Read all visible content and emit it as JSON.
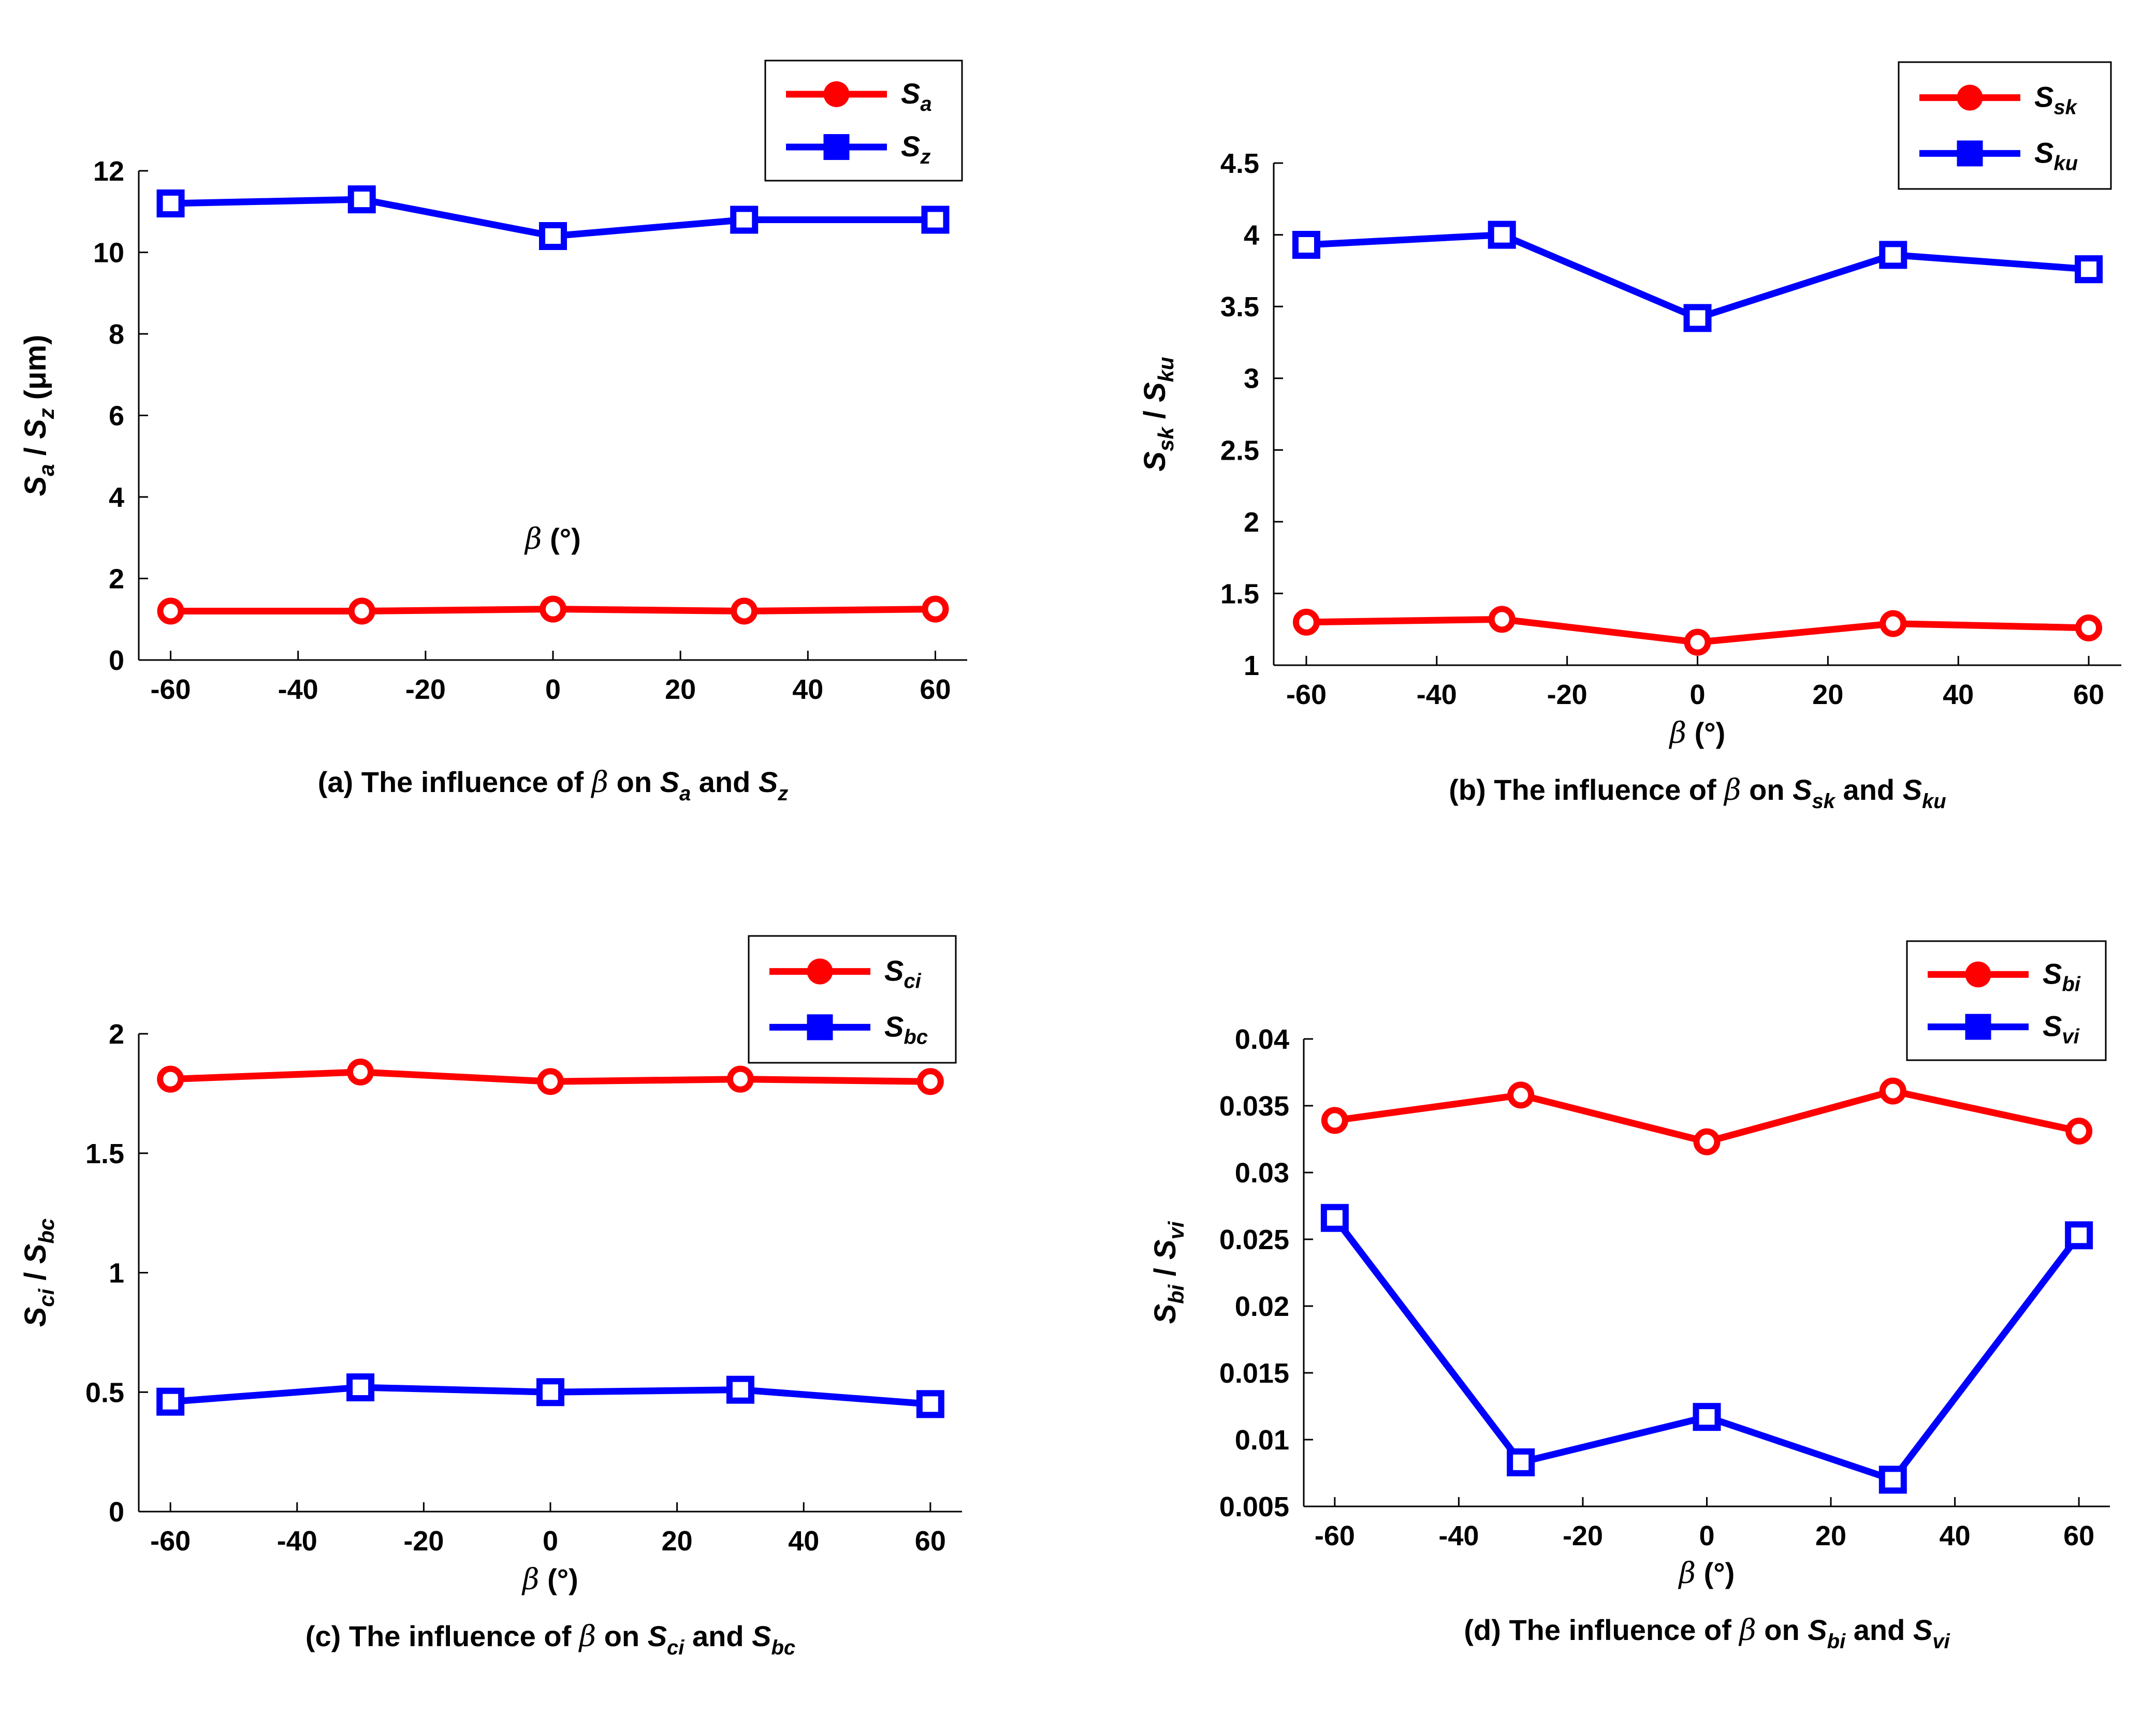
{
  "chart_data": [
    {
      "type": "line",
      "x": [
        -60,
        -30,
        0,
        30,
        60
      ],
      "xlim": [
        -65,
        65
      ],
      "xticks": [
        "-60",
        "-40",
        "-20",
        "0",
        "20",
        "40",
        "60"
      ],
      "xlabel": {
        "symbol": "β",
        "unit": "(°)"
      },
      "ylim": [
        0,
        12
      ],
      "yticks": [
        "0",
        "2",
        "4",
        "6",
        "8",
        "10",
        "12"
      ],
      "ylabel": {
        "a": "S",
        "a_sub": "a",
        "sep": " / ",
        "b": "S",
        "b_sub": "z",
        "unit": " (μm)"
      },
      "series": [
        {
          "name": "S",
          "sub": "a",
          "marker": "circle",
          "color": "#ff0000",
          "values": [
            1.2,
            1.2,
            1.25,
            1.2,
            1.25
          ]
        },
        {
          "name": "S",
          "sub": "z",
          "marker": "square",
          "color": "#0000ff",
          "values": [
            11.2,
            11.3,
            10.4,
            10.8,
            10.8
          ]
        }
      ],
      "caption": {
        "prefix": "(a) The influence of ",
        "symbol": "β",
        "mid": " on ",
        "s1": "S",
        "s1_sub": "a",
        "and": " and ",
        "s2": "S",
        "s2_sub": "z"
      }
    },
    {
      "type": "line",
      "x": [
        -60,
        -30,
        0,
        30,
        60
      ],
      "xlim": [
        -65,
        65
      ],
      "xticks": [
        "-60",
        "-40",
        "-20",
        "0",
        "20",
        "40",
        "60"
      ],
      "xlabel": {
        "symbol": "β",
        "unit": "(°)"
      },
      "ylim": [
        1,
        4.5
      ],
      "yticks": [
        "1",
        "1.5",
        "2",
        "2.5",
        "3",
        "3.5",
        "4",
        "4.5"
      ],
      "ylabel": {
        "a": "S",
        "a_sub": "sk",
        "sep": " / ",
        "b": "S",
        "b_sub": "ku",
        "unit": ""
      },
      "series": [
        {
          "name": "S",
          "sub": "sk",
          "marker": "circle",
          "color": "#ff0000",
          "values": [
            1.3,
            1.32,
            1.16,
            1.29,
            1.26
          ]
        },
        {
          "name": "S",
          "sub": "ku",
          "marker": "square",
          "color": "#0000ff",
          "values": [
            3.93,
            4.0,
            3.42,
            3.86,
            3.76
          ]
        }
      ],
      "caption": {
        "prefix": "(b) The influence of ",
        "symbol": "β",
        "mid": " on ",
        "s1": "S",
        "s1_sub": "sk",
        "and": " and ",
        "s2": "S",
        "s2_sub": "ku"
      }
    },
    {
      "type": "line",
      "x": [
        -60,
        -30,
        0,
        30,
        60
      ],
      "xlim": [
        -65,
        65
      ],
      "xticks": [
        "-60",
        "-40",
        "-20",
        "0",
        "20",
        "40",
        "60"
      ],
      "xlabel": {
        "symbol": "β",
        "unit": "(°)"
      },
      "ylim": [
        0,
        2
      ],
      "yticks": [
        "0",
        "0.5",
        "1",
        "1.5",
        "2"
      ],
      "ylabel": {
        "a": "S",
        "a_sub": "ci",
        "sep": " / ",
        "b": "S",
        "b_sub": "bc",
        "unit": ""
      },
      "series": [
        {
          "name": "S",
          "sub": "ci",
          "marker": "circle",
          "color": "#ff0000",
          "values": [
            1.81,
            1.84,
            1.8,
            1.81,
            1.8
          ]
        },
        {
          "name": "S",
          "sub": "bc",
          "marker": "square",
          "color": "#0000ff",
          "values": [
            0.46,
            0.52,
            0.5,
            0.51,
            0.45
          ]
        }
      ],
      "caption": {
        "prefix": "(c) The influence of ",
        "symbol": "β",
        "mid": " on ",
        "s1": "S",
        "s1_sub": "ci",
        "and": " and ",
        "s2": "S",
        "s2_sub": "bc"
      }
    },
    {
      "type": "line",
      "x": [
        -60,
        -30,
        0,
        30,
        60
      ],
      "xlim": [
        -65,
        65
      ],
      "xticks": [
        "-60",
        "-40",
        "-20",
        "0",
        "20",
        "40",
        "60"
      ],
      "xlabel": {
        "symbol": "β",
        "unit": "(°)"
      },
      "ylim": [
        0.005,
        0.04
      ],
      "yticks": [
        "0.005",
        "0.01",
        "0.015",
        "0.02",
        "0.025",
        "0.03",
        "0.035",
        "0.04"
      ],
      "ylabel": {
        "a": "S",
        "a_sub": "bi",
        "sep": " / ",
        "b": "S",
        "b_sub": "vi",
        "unit": ""
      },
      "series": [
        {
          "name": "S",
          "sub": "bi",
          "marker": "circle",
          "color": "#ff0000",
          "values": [
            0.0339,
            0.0358,
            0.0323,
            0.0361,
            0.0331
          ]
        },
        {
          "name": "S",
          "sub": "vi",
          "marker": "square",
          "color": "#0000ff",
          "values": [
            0.0266,
            0.0083,
            0.0117,
            0.007,
            0.0253
          ]
        }
      ],
      "caption": {
        "prefix": "(d) The influence of ",
        "symbol": "β",
        "mid": " on ",
        "s1": "S",
        "s1_sub": "bi",
        "and": " and ",
        "s2": "S",
        "s2_sub": "vi"
      }
    }
  ]
}
